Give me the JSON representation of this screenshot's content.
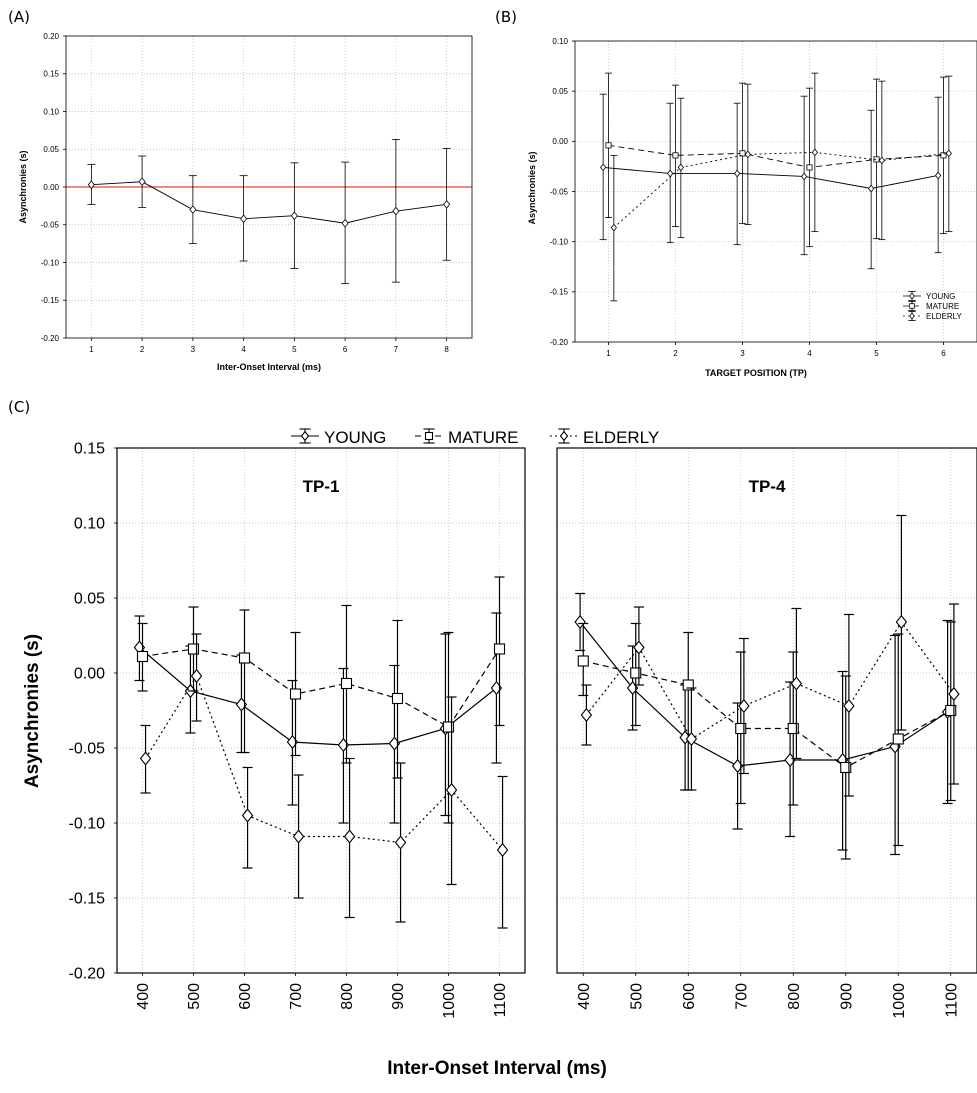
{
  "panel_labels": {
    "a": "(A)",
    "b": "(B)",
    "c": "(C)"
  },
  "chart_data": [
    {
      "id": "A",
      "type": "line",
      "title": "",
      "xlabel": "Inter-Onset Interval (ms)",
      "ylabel": "Asynchronies (s)",
      "categories": [
        "1",
        "2",
        "3",
        "4",
        "5",
        "6",
        "7",
        "8"
      ],
      "ylim": [
        -0.2,
        0.2
      ],
      "yticks": [
        "0.20",
        "0.15",
        "0.10",
        "0.05",
        "0.00",
        "-0.05",
        "-0.10",
        "-0.15",
        "-0.20"
      ],
      "grid": true,
      "reference_line": {
        "y": 0.0,
        "color": "#e8403a"
      },
      "series": [
        {
          "line_style": "solid",
          "marker": "diamond",
          "values": [
            0.003,
            0.007,
            -0.03,
            -0.042,
            -0.038,
            -0.048,
            -0.032,
            -0.023
          ],
          "error_low": [
            -0.023,
            -0.027,
            -0.075,
            -0.098,
            -0.108,
            -0.128,
            -0.126,
            -0.097
          ],
          "error_high": [
            0.03,
            0.041,
            0.015,
            0.015,
            0.032,
            0.033,
            0.063,
            0.051
          ]
        }
      ]
    },
    {
      "id": "B",
      "type": "line",
      "title": "",
      "xlabel": "TARGET POSITION (TP)",
      "ylabel": "Asynchronies (s)",
      "categories": [
        "1",
        "2",
        "3",
        "4",
        "5",
        "6"
      ],
      "ylim": [
        -0.2,
        0.1
      ],
      "yticks": [
        "0.10",
        "0.05",
        "0.00",
        "-0.05",
        "-0.10",
        "-0.15",
        "-0.20"
      ],
      "grid": true,
      "legend": "bottom-right",
      "series": [
        {
          "name": "YOUNG",
          "line_style": "solid",
          "marker": "diamond",
          "values": [
            -0.026,
            -0.032,
            -0.032,
            -0.035,
            -0.047,
            -0.034
          ],
          "error_low": [
            -0.098,
            -0.101,
            -0.103,
            -0.113,
            -0.127,
            -0.111
          ],
          "error_high": [
            0.047,
            0.038,
            0.038,
            0.045,
            0.031,
            0.044
          ]
        },
        {
          "name": "MATURE",
          "line_style": "dashed",
          "marker": "square",
          "values": [
            -0.004,
            -0.014,
            -0.012,
            -0.026,
            -0.018,
            -0.014
          ],
          "error_low": [
            -0.076,
            -0.085,
            -0.082,
            -0.105,
            -0.097,
            -0.092
          ],
          "error_high": [
            0.068,
            0.056,
            0.058,
            0.053,
            0.062,
            0.064
          ]
        },
        {
          "name": "ELDERLY",
          "line_style": "dotted",
          "marker": "diamond",
          "values": [
            -0.086,
            -0.026,
            -0.013,
            -0.011,
            -0.019,
            -0.012
          ],
          "error_low": [
            -0.159,
            -0.096,
            -0.083,
            -0.09,
            -0.098,
            -0.09
          ],
          "error_high": [
            -0.014,
            0.043,
            0.057,
            0.068,
            0.06,
            0.065
          ]
        }
      ]
    },
    {
      "id": "C",
      "type": "line",
      "panels": [
        "TP-1",
        "TP-4"
      ],
      "xlabel": "Inter-Onset Interval (ms)",
      "ylabel": "Asynchronies (s)",
      "categories": [
        "400",
        "500",
        "600",
        "700",
        "800",
        "900",
        "1000",
        "1100"
      ],
      "ylim": [
        -0.2,
        0.15
      ],
      "yticks": [
        "0.15",
        "0.10",
        "0.05",
        "0.00",
        "-0.05",
        "-0.10",
        "-0.15",
        "-0.20"
      ],
      "grid": true,
      "legend": "top-center",
      "legend_entries": [
        "YOUNG",
        "MATURE",
        "ELDERLY"
      ],
      "subplots": [
        {
          "title": "TP-1",
          "series": [
            {
              "name": "YOUNG",
              "line_style": "solid",
              "marker": "diamond",
              "values": [
                0.017,
                -0.012,
                -0.021,
                -0.046,
                -0.048,
                -0.047,
                -0.037,
                -0.01
              ],
              "error_low": [
                -0.005,
                -0.04,
                -0.053,
                -0.088,
                -0.1,
                -0.1,
                -0.095,
                -0.06
              ],
              "error_high": [
                0.038,
                0.018,
                0.012,
                -0.005,
                0.003,
                0.005,
                0.026,
                0.04
              ]
            },
            {
              "name": "MATURE",
              "line_style": "dashed",
              "marker": "square",
              "values": [
                0.011,
                0.016,
                0.01,
                -0.014,
                -0.007,
                -0.017,
                -0.036,
                0.016
              ],
              "error_low": [
                -0.012,
                -0.012,
                -0.053,
                -0.055,
                -0.06,
                -0.07,
                -0.1,
                -0.035
              ],
              "error_high": [
                0.033,
                0.044,
                0.042,
                0.027,
                0.045,
                0.035,
                0.027,
                0.064
              ]
            },
            {
              "name": "ELDERLY",
              "line_style": "dotted",
              "marker": "diamond",
              "values": [
                -0.057,
                -0.002,
                -0.095,
                -0.109,
                -0.109,
                -0.113,
                -0.078,
                -0.118
              ],
              "error_low": [
                -0.08,
                -0.032,
                -0.13,
                -0.15,
                -0.163,
                -0.166,
                -0.141,
                -0.17
              ],
              "error_high": [
                -0.035,
                0.026,
                -0.063,
                -0.068,
                -0.057,
                -0.06,
                -0.016,
                -0.069
              ]
            }
          ]
        },
        {
          "title": "TP-4",
          "series": [
            {
              "name": "YOUNG",
              "line_style": "solid",
              "marker": "diamond",
              "values": [
                0.034,
                -0.01,
                -0.043,
                -0.062,
                -0.058,
                -0.058,
                -0.049,
                -0.026
              ],
              "error_low": [
                0.015,
                -0.038,
                -0.078,
                -0.104,
                -0.109,
                -0.118,
                -0.121,
                -0.087
              ],
              "error_high": [
                0.053,
                0.018,
                -0.008,
                -0.02,
                -0.006,
                0.001,
                0.025,
                0.035
              ]
            },
            {
              "name": "MATURE",
              "line_style": "dashed",
              "marker": "square",
              "values": [
                0.008,
                0.0,
                -0.008,
                -0.037,
                -0.037,
                -0.063,
                -0.044,
                -0.025
              ],
              "error_low": [
                -0.015,
                -0.035,
                -0.078,
                -0.087,
                -0.088,
                -0.124,
                -0.115,
                -0.085
              ],
              "error_high": [
                0.033,
                0.033,
                0.027,
                0.014,
                0.014,
                -0.002,
                0.026,
                0.034
              ]
            },
            {
              "name": "ELDERLY",
              "line_style": "dotted",
              "marker": "diamond",
              "values": [
                -0.028,
                0.017,
                -0.044,
                -0.022,
                -0.007,
                -0.022,
                0.034,
                -0.014
              ],
              "error_low": [
                -0.048,
                -0.008,
                -0.078,
                -0.067,
                -0.057,
                -0.082,
                -0.038,
                -0.074
              ],
              "error_high": [
                -0.008,
                0.044,
                -0.01,
                0.023,
                0.043,
                0.039,
                0.105,
                0.046
              ]
            }
          ]
        }
      ]
    }
  ]
}
